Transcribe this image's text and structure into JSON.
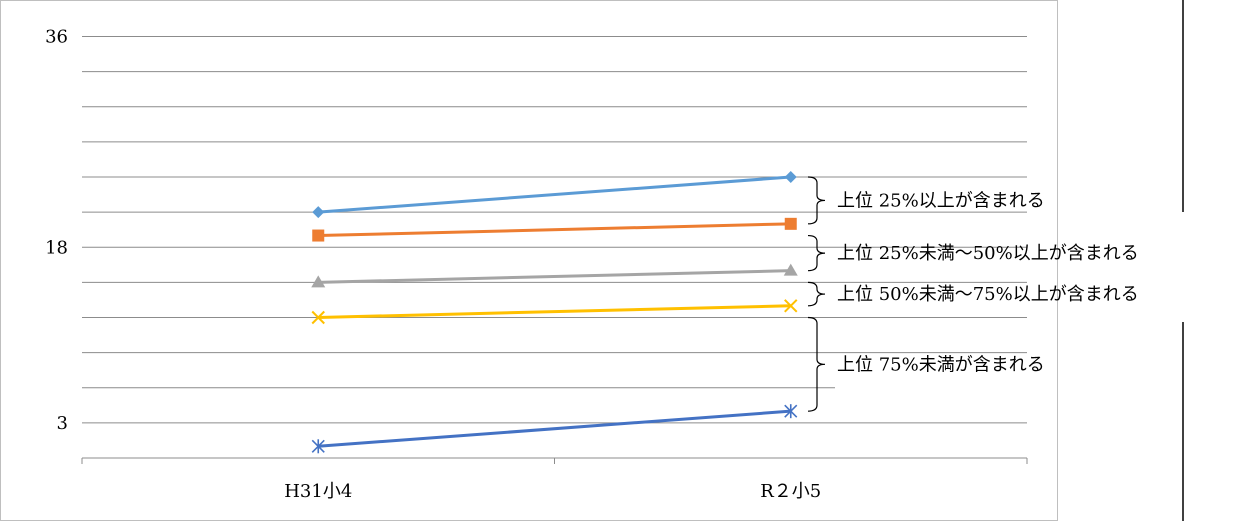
{
  "chart_data": {
    "type": "line",
    "categories": [
      "H31小4",
      "R２小5"
    ],
    "y_tick_labels": [
      "36",
      "18",
      "3"
    ],
    "ylim": [
      0,
      36
    ],
    "grid": true,
    "series": [
      {
        "values": [
          21,
          24
        ],
        "color": "#5B9BD5",
        "marker": "diamond"
      },
      {
        "values": [
          19,
          20
        ],
        "color": "#ED7D31",
        "marker": "square"
      },
      {
        "values": [
          15,
          16
        ],
        "color": "#A5A5A5",
        "marker": "triangle"
      },
      {
        "values": [
          12,
          13
        ],
        "color": "#FFC000",
        "marker": "x"
      },
      {
        "values": [
          1,
          4
        ],
        "color": "#4472C4",
        "marker": "asterisk"
      }
    ],
    "annotations": [
      {
        "text": "上位 25%以上が含まれる",
        "range": [
          20,
          24
        ]
      },
      {
        "text": "上位 25%未満～50%以上が含まれる",
        "range": [
          16,
          19
        ]
      },
      {
        "text": "上位 50%未満～75%以上が含まれる",
        "range": [
          13,
          15
        ]
      },
      {
        "text": "上位 75%未満が含まれる",
        "range": [
          4,
          12
        ]
      }
    ]
  }
}
